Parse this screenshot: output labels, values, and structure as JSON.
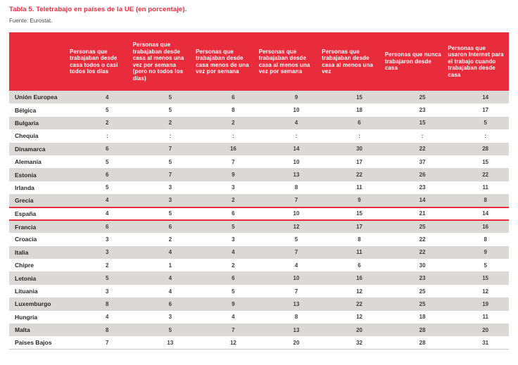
{
  "page": {
    "title": "Tabla 5. Teletrabajo en países de la UE (en porcentaje).",
    "source": "Fuente: Eurostat."
  },
  "colors": {
    "accent_red": "#e92c3c",
    "row_stripe": "#dbd9d5",
    "header_text": "#ffffff",
    "body_text": "#2a2726"
  },
  "table": {
    "na_symbol": ":",
    "columns": [
      "",
      "Personas que trabajaban desde casa todos o casi todos los días",
      "Personas que trabajaban desde casa al menos una vez por semana (pero no todos los días)",
      "Personas que trabajaban desde casa menos de una vez por semana",
      "Personas que trabajaban desde casa al menos una vez por semana",
      "Personas que trabajaban desde casa al menos una vez",
      "Personas que nunca trabajaron desde casa",
      "Personas que usaron Internet para el trabajo cuando trabajaban desde casa"
    ],
    "rows": [
      {
        "country": "Unión Europea",
        "values": [
          "4",
          "5",
          "6",
          "9",
          "15",
          "25",
          "14"
        ],
        "highlight": false
      },
      {
        "country": "Bélgica",
        "values": [
          "5",
          "5",
          "8",
          "10",
          "18",
          "23",
          "17"
        ],
        "highlight": false
      },
      {
        "country": "Bulgaria",
        "values": [
          "2",
          "2",
          "2",
          "4",
          "6",
          "15",
          "5"
        ],
        "highlight": false
      },
      {
        "country": "Chequia",
        "values": [
          ":",
          ":",
          ":",
          ":",
          ":",
          ":",
          ":"
        ],
        "highlight": false
      },
      {
        "country": "Dinamarca",
        "values": [
          "6",
          "7",
          "16",
          "14",
          "30",
          "22",
          "28"
        ],
        "highlight": false
      },
      {
        "country": "Alemania",
        "values": [
          "5",
          "5",
          "7",
          "10",
          "17",
          "37",
          "15"
        ],
        "highlight": false
      },
      {
        "country": "Estonia",
        "values": [
          "6",
          "7",
          "9",
          "13",
          "22",
          "26",
          "22"
        ],
        "highlight": false
      },
      {
        "country": "Irlanda",
        "values": [
          "5",
          "3",
          "3",
          "8",
          "11",
          "23",
          "11"
        ],
        "highlight": false
      },
      {
        "country": "Grecia",
        "values": [
          "4",
          "3",
          "2",
          "7",
          "9",
          "14",
          "8"
        ],
        "highlight": false
      },
      {
        "country": "España",
        "values": [
          "4",
          "5",
          "6",
          "10",
          "15",
          "21",
          "14"
        ],
        "highlight": true
      },
      {
        "country": "Francia",
        "values": [
          "6",
          "6",
          "5",
          "12",
          "17",
          "25",
          "16"
        ],
        "highlight": false
      },
      {
        "country": "Croacia",
        "values": [
          "3",
          "2",
          "3",
          "5",
          "8",
          "22",
          "8"
        ],
        "highlight": false
      },
      {
        "country": "Italia",
        "values": [
          "3",
          "4",
          "4",
          "7",
          "11",
          "22",
          "9"
        ],
        "highlight": false
      },
      {
        "country": "Chipre",
        "values": [
          "2",
          "1",
          "2",
          "4",
          "6",
          "30",
          "5"
        ],
        "highlight": false
      },
      {
        "country": "Letonia",
        "values": [
          "5",
          "4",
          "6",
          "10",
          "16",
          "23",
          "15"
        ],
        "highlight": false
      },
      {
        "country": "Lituania",
        "values": [
          "3",
          "4",
          "5",
          "7",
          "12",
          "25",
          "12"
        ],
        "highlight": false
      },
      {
        "country": "Luxemburgo",
        "values": [
          "8",
          "6",
          "9",
          "13",
          "22",
          "25",
          "19"
        ],
        "highlight": false
      },
      {
        "country": "Hungría",
        "values": [
          "4",
          "3",
          "4",
          "8",
          "12",
          "18",
          "11"
        ],
        "highlight": false
      },
      {
        "country": "Malta",
        "values": [
          "8",
          "5",
          "7",
          "13",
          "20",
          "28",
          "20"
        ],
        "highlight": false
      },
      {
        "country": "Países Bajos",
        "values": [
          "7",
          "13",
          "12",
          "20",
          "32",
          "28",
          "31"
        ],
        "highlight": false
      }
    ]
  }
}
